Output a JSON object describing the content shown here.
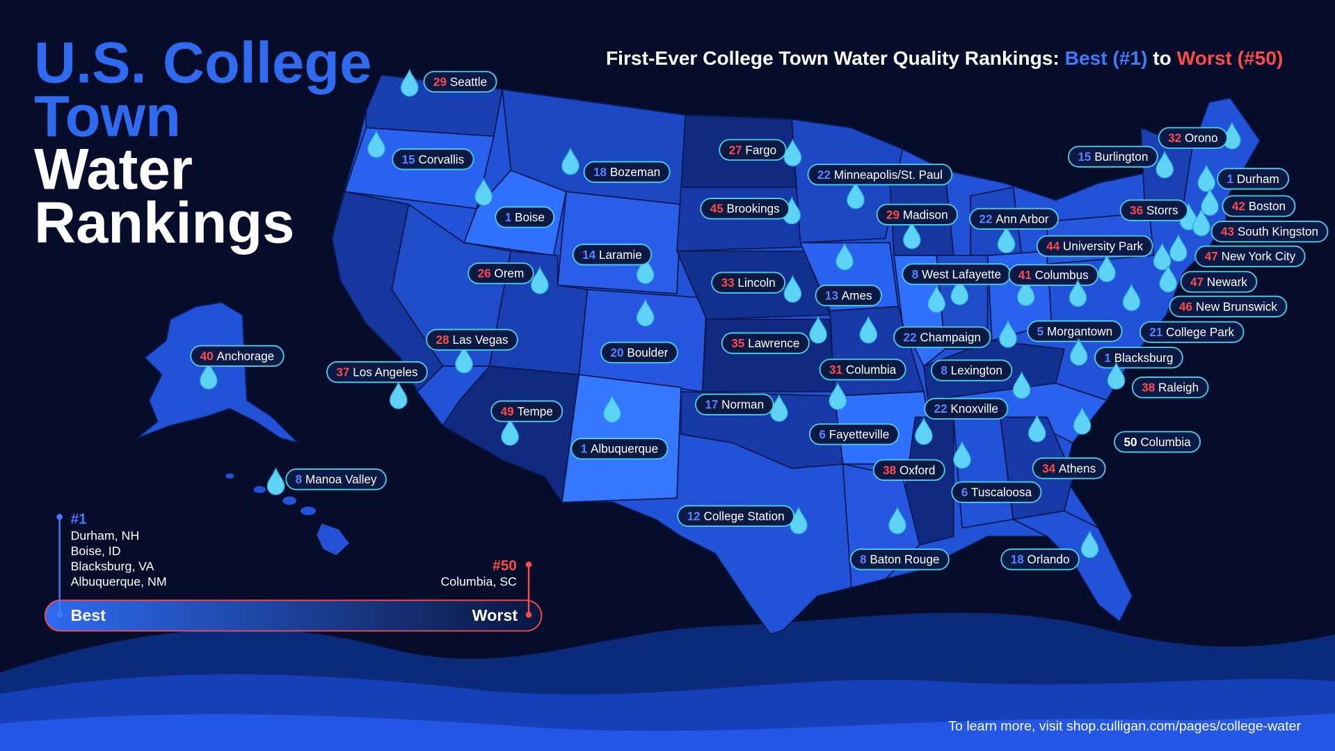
{
  "title": {
    "lines": [
      "U.S. College",
      "Town",
      "Water",
      "Rankings"
    ]
  },
  "subtitle": {
    "lead": "First-Ever College Town Water Quality Rankings:",
    "best": "Best (#1)",
    "to": "to",
    "worst": "Worst (#50)",
    "best_color": "#3f7bff",
    "worst_color": "#ff4a4a"
  },
  "cities": [
    {
      "rank": 29,
      "name": "Seattle",
      "color": "#ff4a4a"
    },
    {
      "rank": 15,
      "name": "Corvallis",
      "color": "#5b82ff"
    },
    {
      "rank": 18,
      "name": "Bozeman",
      "color": "#5b82ff"
    },
    {
      "rank": 1,
      "name": "Boise",
      "color": "#5b82ff"
    },
    {
      "rank": 27,
      "name": "Fargo",
      "color": "#ff4a4a"
    },
    {
      "rank": 22,
      "name": "Minneapolis/St. Paul",
      "color": "#5b82ff"
    },
    {
      "rank": 45,
      "name": "Brookings",
      "color": "#ff4a4a"
    },
    {
      "rank": 29,
      "name": "Madison",
      "color": "#ff4a4a"
    },
    {
      "rank": 22,
      "name": "Ann Arbor",
      "color": "#5b82ff"
    },
    {
      "rank": 15,
      "name": "Burlington",
      "color": "#5b82ff"
    },
    {
      "rank": 32,
      "name": "Orono",
      "color": "#ff4a4a"
    },
    {
      "rank": 1,
      "name": "Durham",
      "color": "#5b82ff"
    },
    {
      "rank": 36,
      "name": "Storrs",
      "color": "#ff4a4a"
    },
    {
      "rank": 42,
      "name": "Boston",
      "color": "#ff4a4a"
    },
    {
      "rank": 43,
      "name": "South Kingston",
      "color": "#ff4a4a"
    },
    {
      "rank": 44,
      "name": "University Park",
      "color": "#ff4a4a"
    },
    {
      "rank": 47,
      "name": "New York City",
      "color": "#ff4a4a"
    },
    {
      "rank": 14,
      "name": "Laramie",
      "color": "#5b82ff"
    },
    {
      "rank": 26,
      "name": "Orem",
      "color": "#ff4a4a"
    },
    {
      "rank": 33,
      "name": "Lincoln",
      "color": "#ff4a4a"
    },
    {
      "rank": 13,
      "name": "Ames",
      "color": "#5b82ff"
    },
    {
      "rank": 8,
      "name": "West Lafayette",
      "color": "#5b82ff"
    },
    {
      "rank": 41,
      "name": "Columbus",
      "color": "#ff4a4a"
    },
    {
      "rank": 47,
      "name": "Newark",
      "color": "#ff4a4a"
    },
    {
      "rank": 46,
      "name": "New Brunswick",
      "color": "#ff4a4a"
    },
    {
      "rank": 28,
      "name": "Las Vegas",
      "color": "#ff4a4a"
    },
    {
      "rank": 20,
      "name": "Boulder",
      "color": "#5b82ff"
    },
    {
      "rank": 35,
      "name": "Lawrence",
      "color": "#ff4a4a"
    },
    {
      "rank": 22,
      "name": "Champaign",
      "color": "#5b82ff"
    },
    {
      "rank": 5,
      "name": "Morgantown",
      "color": "#5b82ff"
    },
    {
      "rank": 21,
      "name": "College Park",
      "color": "#5b82ff"
    },
    {
      "rank": 40,
      "name": "Anchorage",
      "color": "#ff4a4a"
    },
    {
      "rank": 37,
      "name": "Los Angeles",
      "color": "#ff4a4a"
    },
    {
      "rank": 31,
      "name": "Columbia",
      "color": "#ff4a4a"
    },
    {
      "rank": 8,
      "name": "Lexington",
      "color": "#5b82ff"
    },
    {
      "rank": 1,
      "name": "Blacksburg",
      "color": "#5b82ff"
    },
    {
      "rank": 38,
      "name": "Raleigh",
      "color": "#ff4a4a"
    },
    {
      "rank": 49,
      "name": "Tempe",
      "color": "#ff4a4a"
    },
    {
      "rank": 17,
      "name": "Norman",
      "color": "#5b82ff"
    },
    {
      "rank": 22,
      "name": "Knoxville",
      "color": "#5b82ff"
    },
    {
      "rank": 1,
      "name": "Albuquerque",
      "color": "#5b82ff"
    },
    {
      "rank": 6,
      "name": "Fayetteville",
      "color": "#5b82ff"
    },
    {
      "rank": 50,
      "name": "Columbia",
      "color": "#ffffff"
    },
    {
      "rank": 38,
      "name": "Oxford",
      "color": "#ff4a4a"
    },
    {
      "rank": 34,
      "name": "Athens",
      "color": "#ff4a4a"
    },
    {
      "rank": 6,
      "name": "Tuscaloosa",
      "color": "#5b82ff"
    },
    {
      "rank": 8,
      "name": "Manoa Valley",
      "color": "#5b82ff"
    },
    {
      "rank": 12,
      "name": "College Station",
      "color": "#5b82ff"
    },
    {
      "rank": 8,
      "name": "Baton Rouge",
      "color": "#5b82ff"
    },
    {
      "rank": 18,
      "name": "Orlando",
      "color": "#5b82ff"
    }
  ],
  "legend": {
    "best_rank": "#1",
    "best_towns": [
      "Durham, NH",
      "Boise, ID",
      "Blacksburg, VA",
      "Albuquerque, NM"
    ],
    "worst_rank": "#50",
    "worst_towns": [
      "Columbia, SC"
    ],
    "best": "Best",
    "worst": "Worst"
  },
  "footer": "To learn more, visit shop.culligan.com/pages/college-water"
}
